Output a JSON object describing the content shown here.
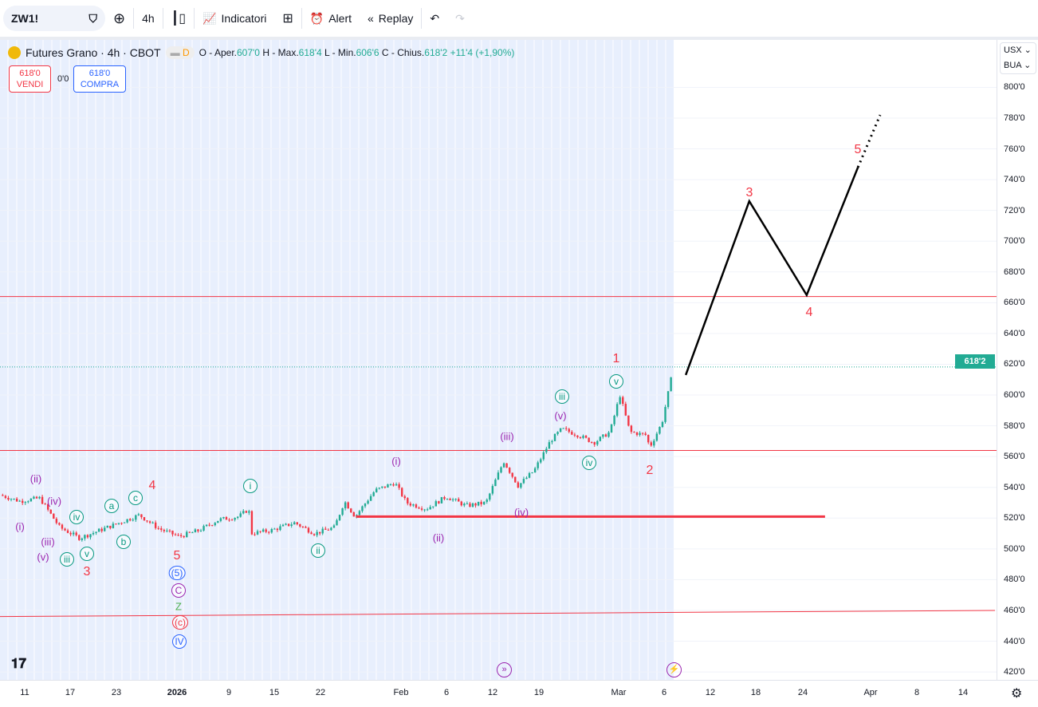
{
  "toolbar": {
    "symbol": "ZW1!",
    "interval": "4h",
    "indicators": "Indicatori",
    "alert": "Alert",
    "replay": "Replay"
  },
  "legend": {
    "title": "Futures Grano · 4h · CBOT",
    "badge": "D",
    "o_label": "O - Aper.",
    "o": "607'0",
    "h_label": "H - Max.",
    "h": "618'4",
    "l_label": "L - Min.",
    "l": "606'6",
    "c_label": "C - Chius.",
    "c": "618'2",
    "change": "+11'4 (+1,90%)"
  },
  "trade": {
    "sell_price": "618'0",
    "sell_label": "VENDI",
    "spread": "0'0",
    "buy_price": "618'0",
    "buy_label": "COMPRA"
  },
  "axis": {
    "currency": "USX",
    "unit": "BUA",
    "current_price": "618'2"
  },
  "colors": {
    "up": "#22ab94",
    "down": "#f23645",
    "wave": "#f23645",
    "projection": "#000000"
  },
  "chart_data": {
    "type": "candlestick",
    "title": "Futures Grano · 4h · CBOT",
    "ylim": [
      420,
      800
    ],
    "y_ticks": [
      "800'0",
      "780'0",
      "760'0",
      "740'0",
      "720'0",
      "700'0",
      "680'0",
      "660'0",
      "640'0",
      "620'0",
      "600'0",
      "580'0",
      "560'0",
      "540'0",
      "520'0",
      "500'0",
      "480'0",
      "460'0",
      "440'0",
      "420'0"
    ],
    "y_tick_values": [
      800,
      780,
      760,
      740,
      720,
      700,
      680,
      660,
      640,
      620,
      600,
      580,
      560,
      540,
      520,
      500,
      480,
      460,
      440,
      420
    ],
    "x_ticks": [
      "11",
      "17",
      "23",
      "2026",
      "9",
      "15",
      "22",
      "Feb",
      "6",
      "12",
      "19",
      "Mar",
      "6",
      "12",
      "18",
      "24",
      "Apr",
      "8",
      "14"
    ],
    "price_path": [
      [
        0,
        535
      ],
      [
        2.6,
        531
      ],
      [
        5.2,
        533
      ],
      [
        7.8,
        514
      ],
      [
        10.4,
        507
      ],
      [
        13,
        512
      ],
      [
        15.6,
        517
      ],
      [
        18.2,
        522
      ],
      [
        20.8,
        513
      ],
      [
        23.4,
        508
      ],
      [
        26,
        512
      ],
      [
        28.6,
        519
      ],
      [
        31.2,
        521
      ],
      [
        32.5,
        526
      ],
      [
        32.8,
        510
      ],
      [
        35.4,
        512
      ],
      [
        38.5,
        517
      ],
      [
        41.1,
        510
      ],
      [
        43.7,
        514
      ],
      [
        45,
        531
      ],
      [
        46.4,
        521
      ],
      [
        49,
        538
      ],
      [
        51.6,
        543
      ],
      [
        53.1,
        530
      ],
      [
        55.7,
        526
      ],
      [
        58.3,
        534
      ],
      [
        60.9,
        528
      ],
      [
        63.5,
        530
      ],
      [
        65.8,
        557
      ],
      [
        67.7,
        541
      ],
      [
        69.8,
        551
      ],
      [
        71.9,
        570
      ],
      [
        73.4,
        578
      ],
      [
        75.5,
        574
      ],
      [
        77.6,
        569
      ],
      [
        79.7,
        576
      ],
      [
        81,
        600
      ],
      [
        82.3,
        576
      ],
      [
        84.4,
        574
      ],
      [
        84.9,
        566
      ],
      [
        86.5,
        582
      ],
      [
        88,
        618
      ]
    ],
    "h_levels": [
      664,
      564
    ],
    "support_line": {
      "from": [
        46.5,
        521
      ],
      "to": [
        107.8,
        521
      ]
    },
    "trend_line": {
      "from": [
        0,
        456
      ],
      "to": [
        130,
        460
      ]
    },
    "projection": [
      [
        89.6,
        613
      ],
      [
        97.9,
        726
      ],
      [
        105.4,
        665
      ],
      [
        112.1,
        748
      ]
    ],
    "projection_dotted": [
      [
        112.1,
        748
      ],
      [
        115,
        782
      ]
    ],
    "waves": [
      {
        "t": "(ii)"
      },
      {
        "t": "(i)"
      },
      {
        "t": "(iv)"
      },
      {
        "t": "iv"
      },
      {
        "t": "a"
      },
      {
        "t": "c"
      },
      {
        "t": "4"
      },
      {
        "t": "b"
      },
      {
        "t": "(iii)"
      },
      {
        "t": "(v)"
      },
      {
        "t": "iii"
      },
      {
        "t": "v"
      },
      {
        "t": "3"
      },
      {
        "t": "5"
      },
      {
        "t": "(5)"
      },
      {
        "t": "C"
      },
      {
        "t": "Z"
      },
      {
        "t": "(c)"
      },
      {
        "t": "IV"
      },
      {
        "t": "i"
      },
      {
        "t": "ii"
      },
      {
        "t": "(i)"
      },
      {
        "t": "(ii)"
      },
      {
        "t": "(iii)"
      },
      {
        "t": "(iv)"
      },
      {
        "t": "(v)"
      },
      {
        "t": "iii"
      },
      {
        "t": "iv"
      },
      {
        "t": "v"
      },
      {
        "t": "1"
      },
      {
        "t": "2"
      },
      {
        "t": "3"
      },
      {
        "t": "4"
      },
      {
        "t": "5"
      }
    ]
  }
}
